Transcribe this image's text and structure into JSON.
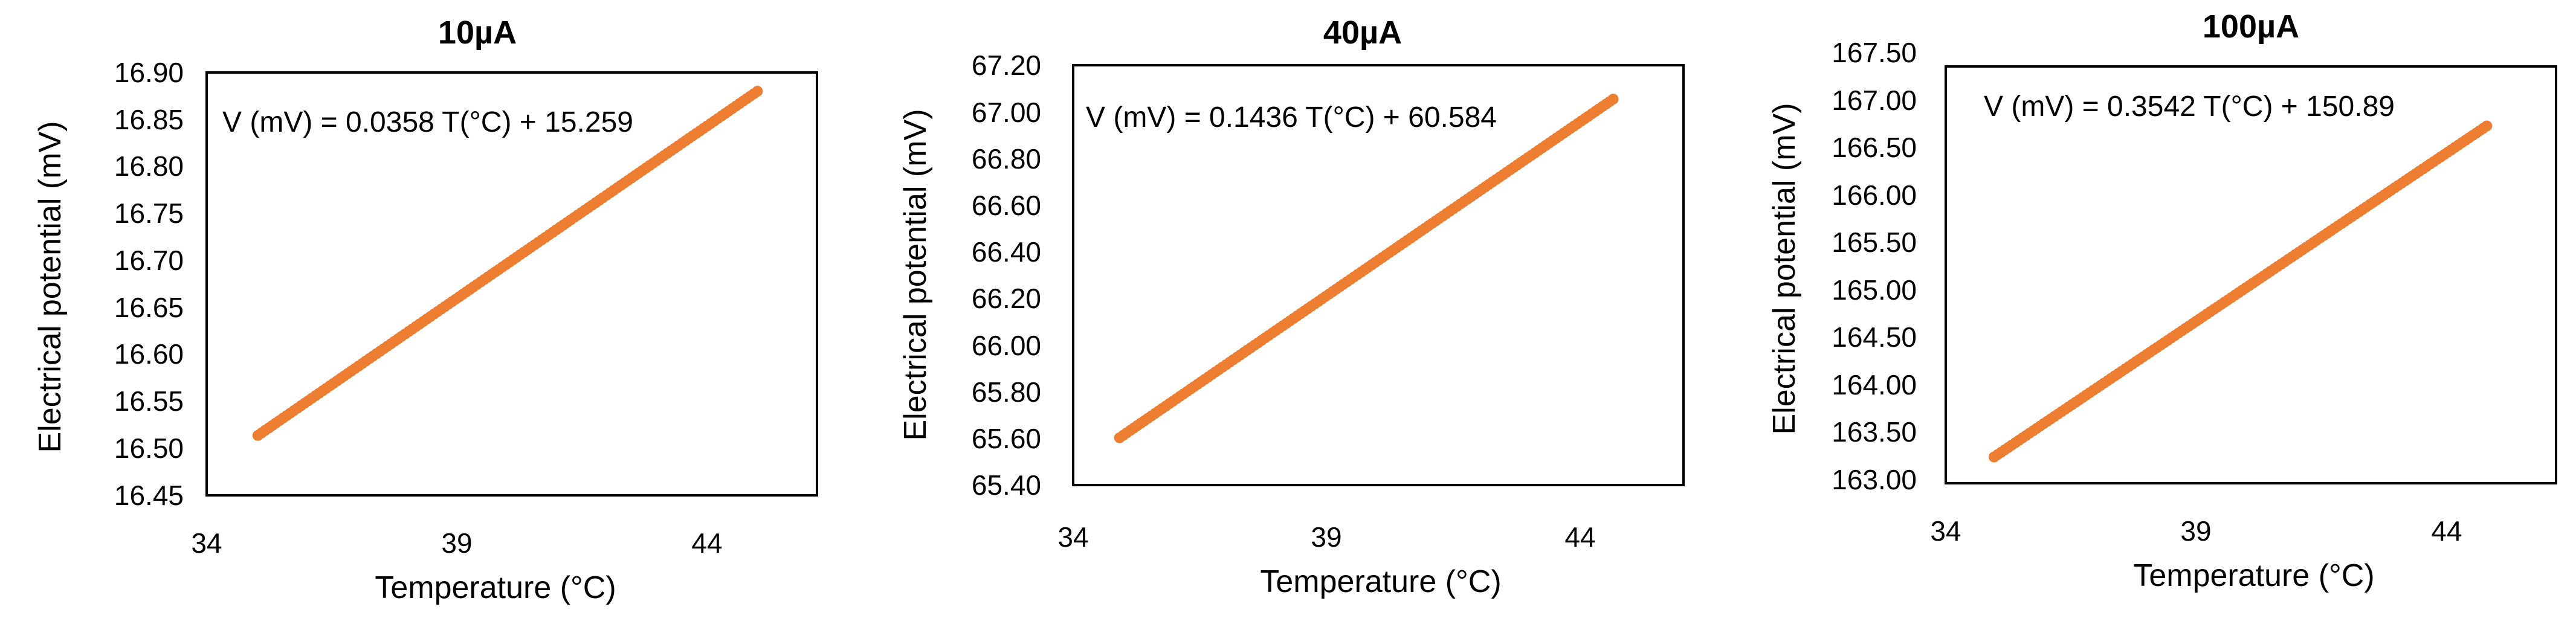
{
  "point_color": "#ED7D31",
  "chart_data": [
    {
      "type": "scatter",
      "title": "10µA",
      "xlabel": "Temperature (°C)",
      "ylabel": "Electrical potential (mV)",
      "xlim": [
        34,
        46.5
      ],
      "ylim": [
        16.45,
        16.9
      ],
      "xticks": [
        "34",
        "39",
        "44"
      ],
      "yticks": [
        "16.45",
        "16.50",
        "16.55",
        "16.60",
        "16.65",
        "16.70",
        "16.75",
        "16.80",
        "16.85",
        "16.90"
      ],
      "equation": "V (mV) = 0.0358 T(°C) + 15.259",
      "fit": {
        "slope": 0.0358,
        "intercept": 15.259
      },
      "x_range": [
        35.05,
        45.28
      ],
      "n_points": 140,
      "grid": false
    },
    {
      "type": "scatter",
      "title": "40µA",
      "xlabel": "Temperature (°C)",
      "ylabel": "Electrical potential (mV)",
      "xlim": [
        34,
        46.5
      ],
      "ylim": [
        65.4,
        67.2
      ],
      "xticks": [
        "34",
        "39",
        "44"
      ],
      "yticks": [
        "65.40",
        "65.60",
        "65.80",
        "66.00",
        "66.20",
        "66.40",
        "66.60",
        "66.80",
        "67.00",
        "67.20"
      ],
      "equation": "V (mV) = 0.1436 T(°C) + 60.584",
      "fit": {
        "slope": 0.1436,
        "intercept": 60.584
      },
      "x_range": [
        34.95,
        45.06
      ],
      "n_points": 140,
      "grid": false
    },
    {
      "type": "scatter",
      "title": "100µA",
      "xlabel": "Temperature (°C)",
      "ylabel": "Electrical potential (mV)",
      "xlim": [
        34,
        46.5
      ],
      "ylim": [
        163,
        167.5
      ],
      "xticks": [
        "34",
        "39",
        "44"
      ],
      "yticks": [
        "163.00",
        "163.50",
        "164.00",
        "164.50",
        "165.00",
        "165.50",
        "166.00",
        "166.50",
        "167.00",
        "167.50"
      ],
      "equation": "V (mV) = 0.3542 T(°C) + 150.89",
      "fit": {
        "slope": 0.3542,
        "intercept": 150.89
      },
      "x_range": [
        34.99,
        45.08
      ],
      "n_points": 140,
      "grid": false
    }
  ]
}
